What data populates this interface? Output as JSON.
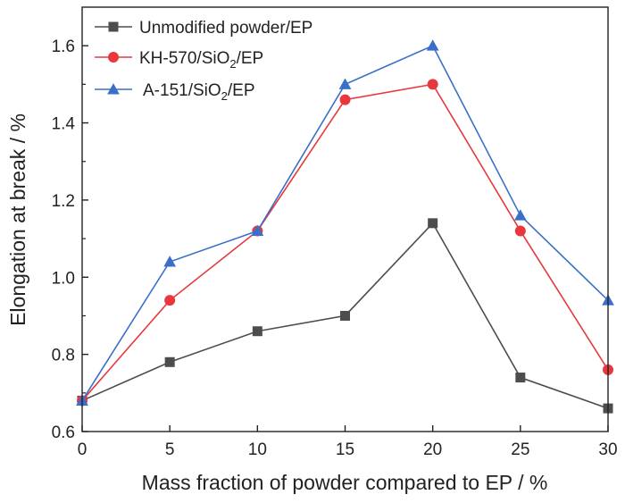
{
  "chart_data": {
    "type": "line",
    "xlabel": "Mass fraction of powder compared to EP / %",
    "ylabel": "Elongation at break / %",
    "xlim": [
      0,
      30
    ],
    "ylim": [
      0.6,
      1.7
    ],
    "xticks": [
      0,
      5,
      10,
      15,
      20,
      25,
      30
    ],
    "yticks": [
      0.6,
      0.8,
      1.0,
      1.2,
      1.4,
      1.6
    ],
    "xtick_labels": [
      "0",
      "5",
      "10",
      "15",
      "20",
      "25",
      "30"
    ],
    "ytick_labels": [
      "0.6",
      "0.8",
      "1.0",
      "1.2",
      "1.4",
      "1.6"
    ],
    "grid": false,
    "legend_position": "top-left",
    "x": [
      0,
      5,
      10,
      15,
      20,
      25,
      30
    ],
    "series": [
      {
        "name": "Unmodified powder/EP",
        "name_parts": [
          {
            "t": "Unmodified powder/EP",
            "sub": false
          }
        ],
        "marker": "square",
        "color": "#4d4d4d",
        "values": [
          0.68,
          0.78,
          0.86,
          0.9,
          1.14,
          0.74,
          0.66
        ]
      },
      {
        "name": "KH-570/SiO2/EP",
        "name_parts": [
          {
            "t": "KH-570/SiO",
            "sub": false
          },
          {
            "t": "2",
            "sub": true
          },
          {
            "t": "/EP",
            "sub": false
          }
        ],
        "marker": "circle",
        "color": "#e8383d",
        "values": [
          0.68,
          0.94,
          1.12,
          1.46,
          1.5,
          1.12,
          0.76
        ]
      },
      {
        "name": "A-151/SiO2/EP",
        "name_parts": [
          {
            "t": "A-151/SiO",
            "sub": false
          },
          {
            "t": "2",
            "sub": true
          },
          {
            "t": "/EP",
            "sub": false
          }
        ],
        "marker": "triangle",
        "color": "#3a6fc9",
        "values": [
          0.68,
          1.04,
          1.12,
          1.5,
          1.6,
          1.16,
          0.94
        ]
      }
    ]
  }
}
